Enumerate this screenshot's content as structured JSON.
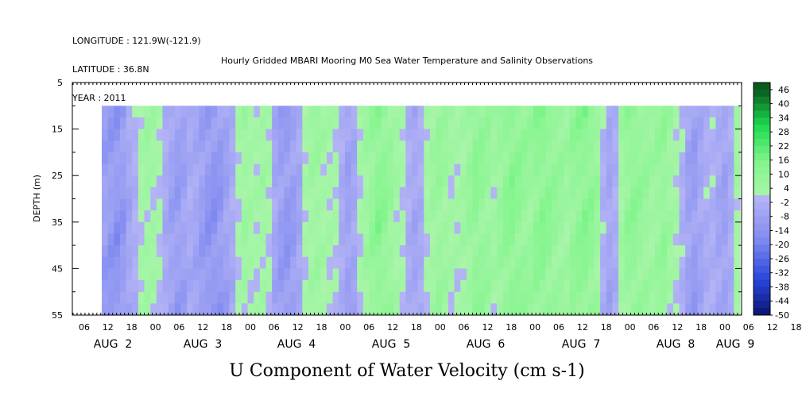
{
  "header": {
    "longitude": "LONGITUDE : 121.9W(-121.9)",
    "latitude": "LATITUDE : 36.8N",
    "year": "YEAR : 2011"
  },
  "chart_data": {
    "type": "heatmap",
    "title": "Hourly Gridded MBARI Mooring M0 Sea Water Temperature and Salinity Observations",
    "xlabel": "U Component of Water Velocity (cm s-1)",
    "ylabel": "DEPTH (m)",
    "ylim": [
      55,
      5
    ],
    "y_ticks": [
      "5",
      "15",
      "25",
      "35",
      "45",
      "55"
    ],
    "x_hour_ticks": [
      "06",
      "12",
      "18",
      "00",
      "06",
      "12",
      "18",
      "00",
      "06",
      "12",
      "18",
      "00",
      "06",
      "12",
      "18",
      "00",
      "06",
      "12",
      "18",
      "00",
      "06",
      "12",
      "18",
      "00",
      "06",
      "12",
      "18",
      "00",
      "06",
      "12",
      "18",
      "00"
    ],
    "x_day_labels": [
      "AUG  2",
      "AUG  3",
      "AUG  4",
      "AUG  5",
      "AUG  6",
      "AUG  7",
      "AUG  8",
      "AUG  9"
    ],
    "data_depth_range": [
      10,
      55
    ],
    "colorbar": {
      "labels": [
        "46",
        "40",
        "34",
        "28",
        "22",
        "16",
        "10",
        "4",
        "-2",
        "-8",
        "-14",
        "-20",
        "-26",
        "-32",
        "-38",
        "-44",
        "-50"
      ],
      "min": -50,
      "max": 49,
      "step": 3
    },
    "velocity_by_time": [
      -10,
      -12,
      -14,
      -12,
      -6,
      -2,
      3,
      5,
      4,
      2,
      -4,
      -8,
      -10,
      -8,
      -4,
      -6,
      -10,
      -13,
      -14,
      -12,
      -8,
      -4,
      2,
      6,
      4,
      3,
      5,
      2,
      -6,
      -10,
      -12,
      -10,
      -6,
      2,
      5,
      6,
      4,
      3,
      2,
      -4,
      -8,
      -6,
      2,
      6,
      10,
      14,
      12,
      8,
      4,
      2,
      -3,
      -6,
      -4,
      3,
      6,
      8,
      6,
      4,
      3,
      5,
      8,
      12,
      10,
      8,
      5,
      8,
      12,
      14,
      12,
      10,
      8,
      12,
      14,
      12,
      10,
      8,
      6,
      10,
      12,
      14,
      12,
      8,
      -2,
      -6,
      -3,
      5,
      10,
      12,
      10,
      8,
      6,
      8,
      10,
      6,
      3,
      -2,
      -8,
      -10,
      -6,
      -3,
      -2,
      -6,
      -8,
      -4,
      4
    ]
  }
}
